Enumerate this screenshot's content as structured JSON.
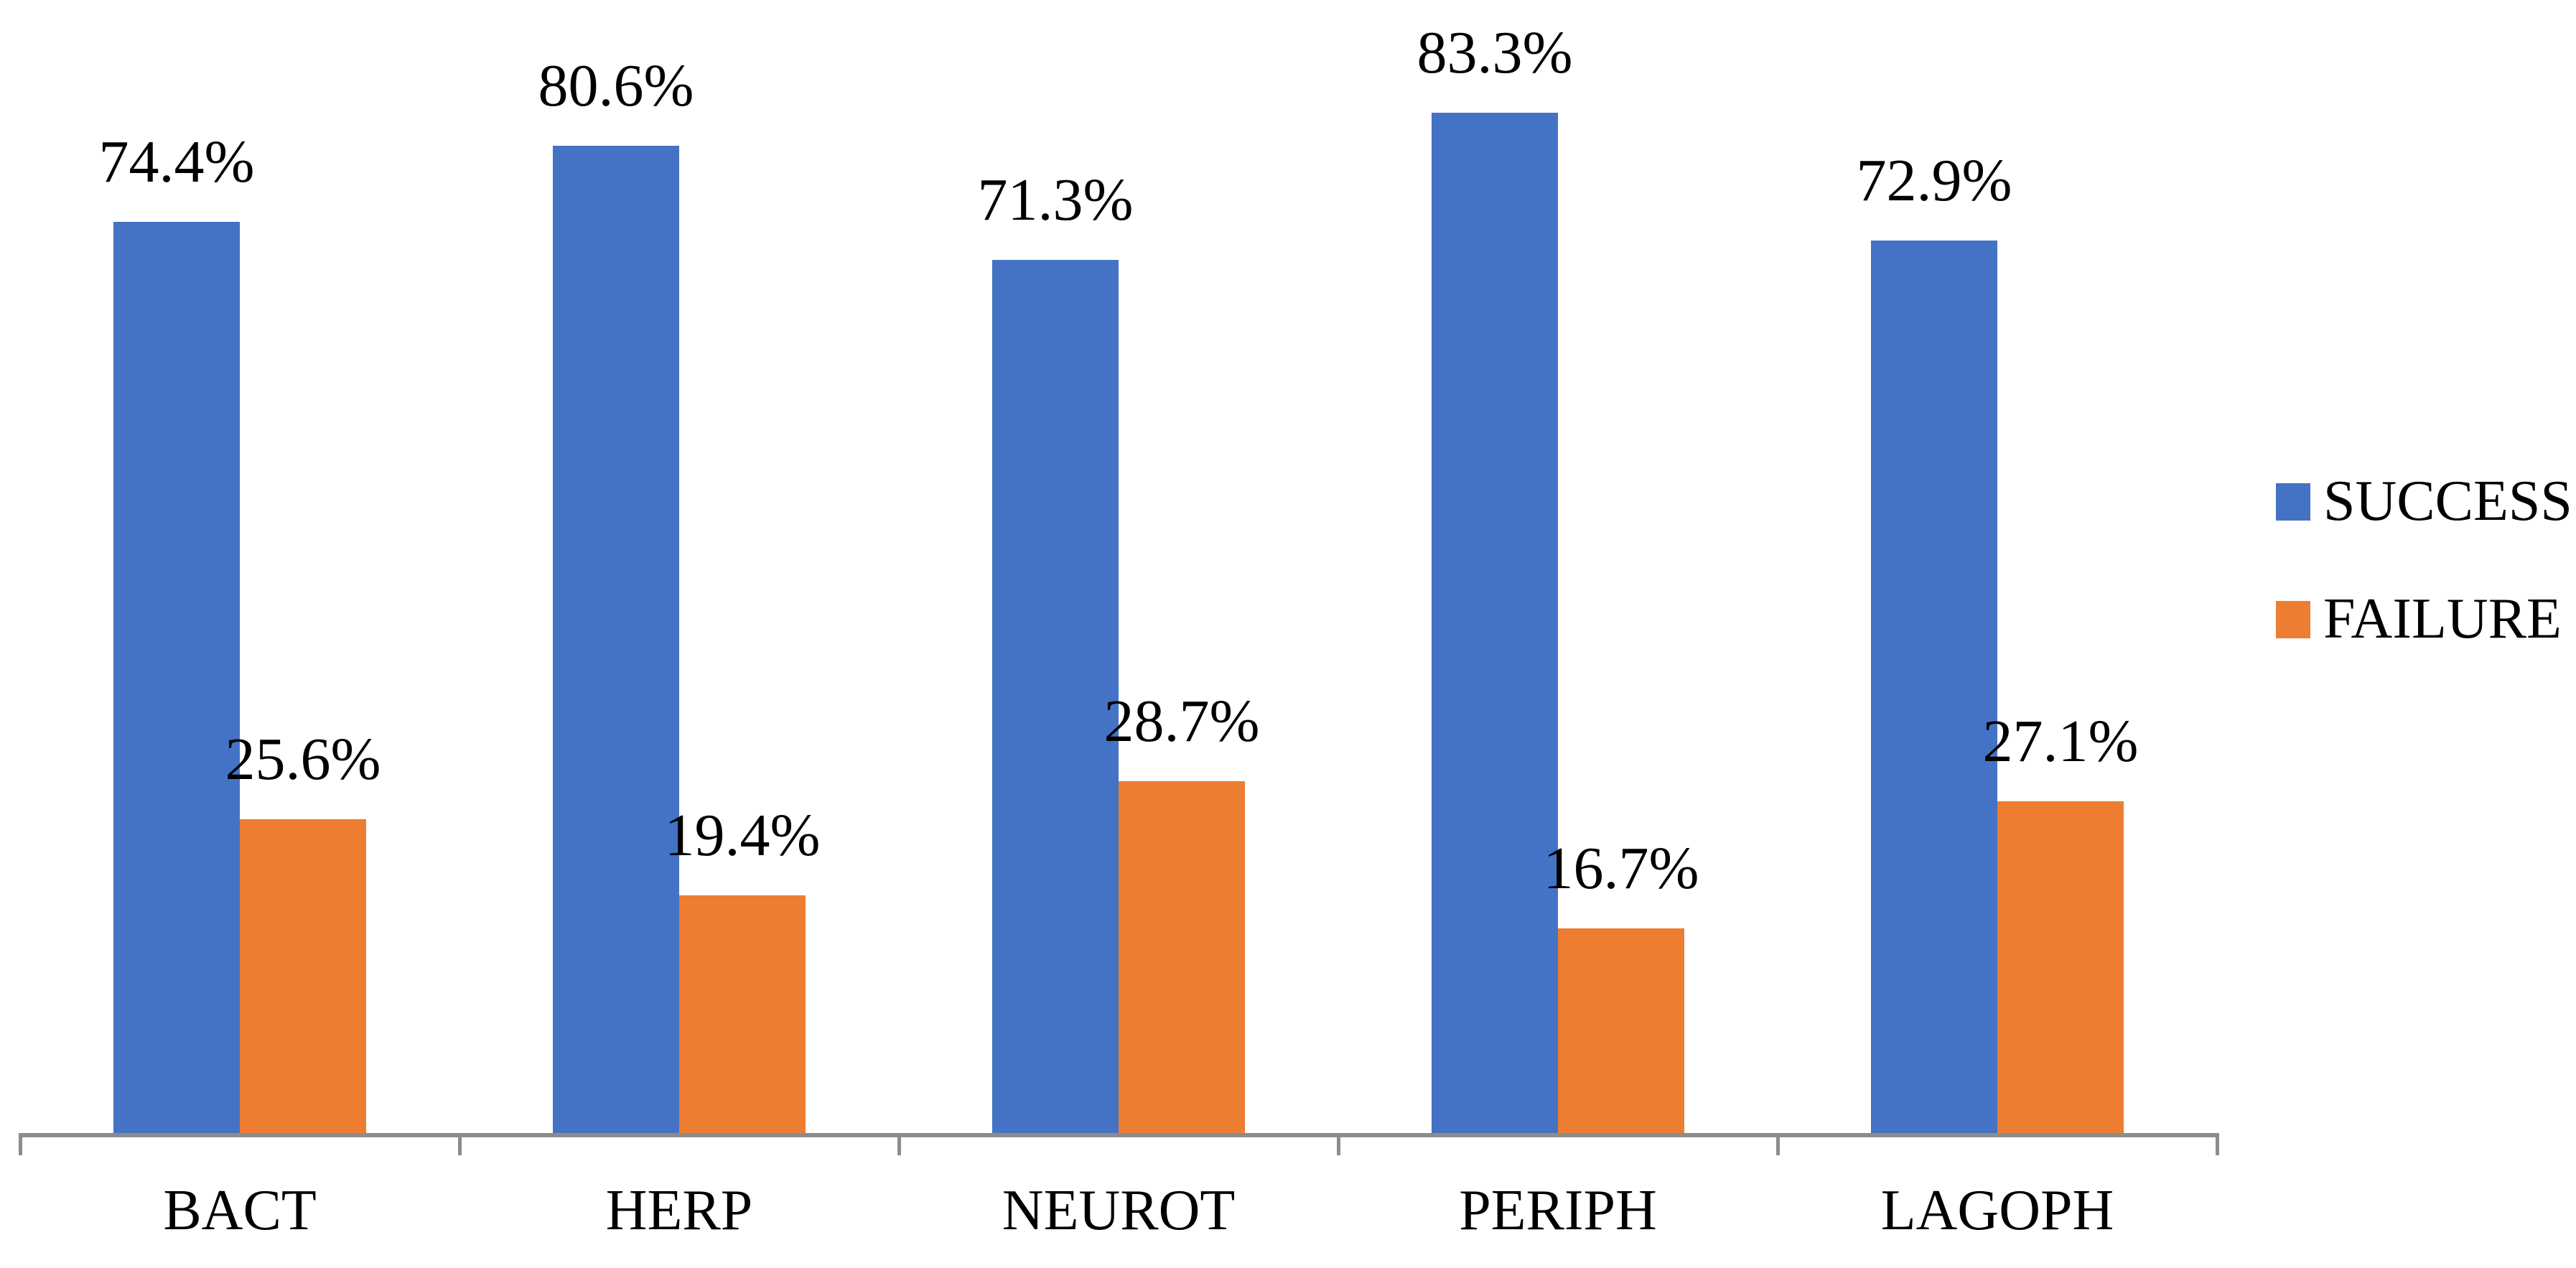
{
  "chart_data": {
    "type": "bar",
    "categories": [
      "BACT",
      "HERP",
      "NEUROT",
      "PERIPH",
      "LAGOPH"
    ],
    "series": [
      {
        "name": "SUCCESS",
        "color": "#4472C4",
        "values": [
          74.4,
          80.6,
          71.3,
          83.3,
          72.9
        ],
        "data_labels": [
          "74.4%",
          "80.6%",
          "71.3%",
          "83.3%",
          "72.9%"
        ]
      },
      {
        "name": "FAILURE",
        "color": "#ED7D31",
        "values": [
          25.6,
          19.4,
          28.7,
          16.7,
          27.1
        ],
        "data_labels": [
          "25.6%",
          "19.4%",
          "28.7%",
          "16.7%",
          "27.1%"
        ]
      }
    ],
    "title": "",
    "xlabel": "",
    "ylabel": "",
    "ylim": [
      0,
      100
    ],
    "grid": false,
    "legend_position": "right",
    "axis_color": "#8C8C8C",
    "label_color": "#000000",
    "background": "#FFFFFF"
  },
  "legend": {
    "items": [
      {
        "label": "SUCCESS",
        "color": "#4472C4"
      },
      {
        "label": "FAILURE",
        "color": "#ED7D31"
      }
    ]
  }
}
